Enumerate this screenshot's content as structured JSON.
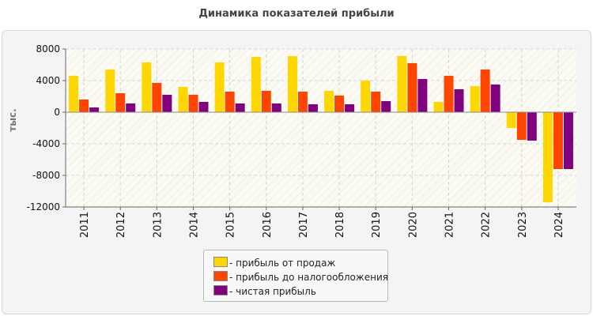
{
  "title": "Динамика показателей прибыли",
  "chart_data": {
    "type": "bar",
    "title": "Динамика показателей прибыли",
    "ylabel": "тыс.",
    "xlabel": "",
    "ylim": [
      -12000,
      8000
    ],
    "yticks": [
      8000,
      4000,
      0,
      -4000,
      -8000,
      -12000
    ],
    "grid": true,
    "legend_position": "bottom",
    "categories": [
      "2011",
      "2012",
      "2013",
      "2014",
      "2015",
      "2016",
      "2017",
      "2018",
      "2019",
      "2020",
      "2021",
      "2022",
      "2023",
      "2024"
    ],
    "series": [
      {
        "name": "прибыль от продаж",
        "color": "#ffd700",
        "values": [
          4600,
          5400,
          6300,
          3200,
          6300,
          7000,
          7100,
          2700,
          4000,
          7100,
          1300,
          3300,
          -2000,
          -11400
        ]
      },
      {
        "name": "прибыль до налогообложения",
        "color": "#ff4500",
        "values": [
          1600,
          2400,
          3700,
          2200,
          2600,
          2700,
          2600,
          2100,
          2600,
          6200,
          4600,
          5400,
          -3500,
          -7200
        ]
      },
      {
        "name": "чистая прибыль",
        "color": "#800080",
        "values": [
          600,
          1100,
          2200,
          1300,
          1100,
          1100,
          1000,
          1000,
          1400,
          4200,
          2900,
          3500,
          -3600,
          -7200
        ]
      }
    ]
  },
  "legend": {
    "items": [
      {
        "label": "- прибыль от продаж",
        "color": "#ffd700"
      },
      {
        "label": "- прибыль до налогообложения",
        "color": "#ff4500"
      },
      {
        "label": "- чистая прибыль",
        "color": "#800080"
      }
    ]
  }
}
